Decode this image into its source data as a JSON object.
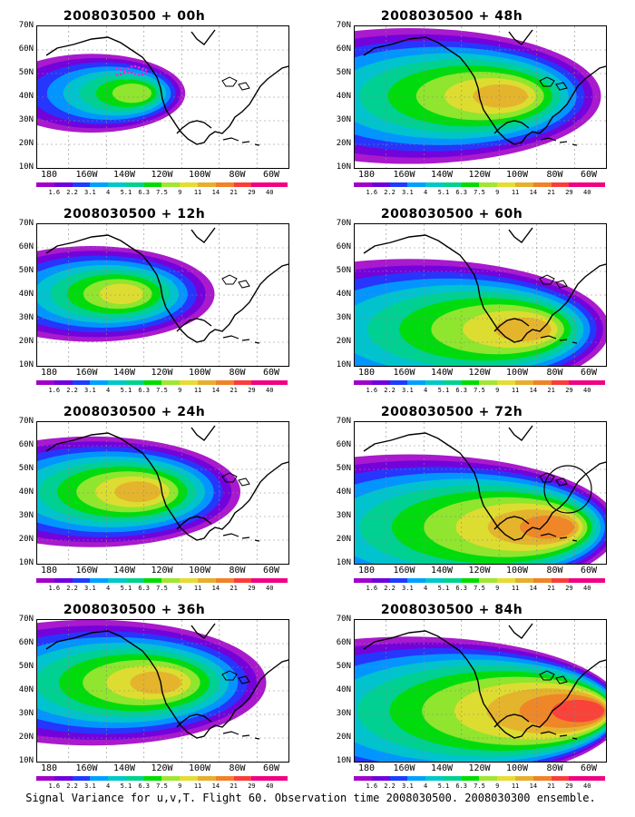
{
  "lat_labels": [
    "70N",
    "60N",
    "50N",
    "40N",
    "30N",
    "20N",
    "10N"
  ],
  "lon_labels": [
    "180",
    "160W",
    "140W",
    "120W",
    "100W",
    "80W",
    "60W"
  ],
  "colorbar": {
    "colors": [
      "#a000c8",
      "#6e00dc",
      "#1e3cff",
      "#00a0ff",
      "#00c8c8",
      "#00d28c",
      "#00dc00",
      "#a0e632",
      "#e6dc32",
      "#e6af2d",
      "#f08228",
      "#fa3c3c",
      "#f00082"
    ],
    "labels": [
      "1.6",
      "2.2",
      "3.1",
      "4",
      "5.1",
      "6.3",
      "7.5",
      "9",
      "11",
      "14",
      "21",
      "29",
      "40"
    ]
  },
  "panels": [
    {
      "title": "2008030500 + 00h",
      "lead": "00h",
      "extent": 0.28,
      "intensity": 0.45,
      "hot": [
        0.4,
        0.28
      ],
      "circle": false,
      "pink_dots": true
    },
    {
      "title": "2008030500 + 12h",
      "lead": "12h",
      "extent": 0.45,
      "intensity": 0.6,
      "hot": [
        0.35,
        0.3
      ],
      "circle": false,
      "pink_dots": false
    },
    {
      "title": "2008030500 + 24h",
      "lead": "24h",
      "extent": 0.6,
      "intensity": 0.7,
      "hot": [
        0.42,
        0.3
      ],
      "circle": false,
      "pink_dots": false
    },
    {
      "title": "2008030500 + 36h",
      "lead": "36h",
      "extent": 0.75,
      "intensity": 0.75,
      "hot": [
        0.5,
        0.25
      ],
      "circle": false,
      "pink_dots": false
    },
    {
      "title": "2008030500 + 48h",
      "lead": "48h",
      "extent": 0.85,
      "intensity": 0.72,
      "hot": [
        0.62,
        0.3
      ],
      "circle": false,
      "pink_dots": false
    },
    {
      "title": "2008030500 + 60h",
      "lead": "60h",
      "extent": 0.9,
      "intensity": 0.78,
      "hot": [
        0.72,
        0.55
      ],
      "circle": false,
      "pink_dots": false
    },
    {
      "title": "2008030500 + 72h",
      "lead": "72h",
      "extent": 0.95,
      "intensity": 0.85,
      "hot": [
        0.82,
        0.55
      ],
      "circle": true,
      "pink_dots": false
    },
    {
      "title": "2008030500 + 84h",
      "lead": "84h",
      "extent": 0.98,
      "intensity": 0.95,
      "hot": [
        0.95,
        0.45
      ],
      "circle": false,
      "pink_dots": false
    }
  ],
  "footer": "Signal Variance for u,v,T. Flight 60. Observation time 2008030500. 2008030300 ensemble."
}
